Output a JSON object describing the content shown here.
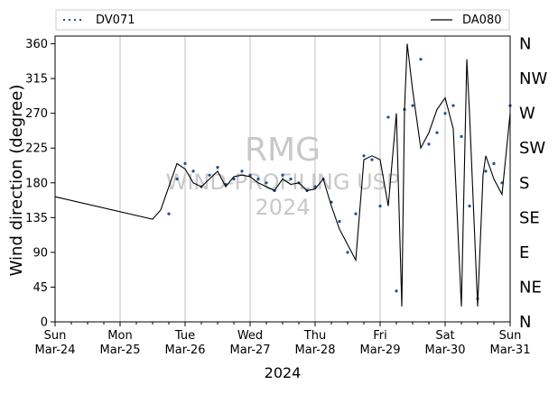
{
  "chart_data": {
    "type": "line",
    "xlabel": "2024",
    "ylabel": "Wind direction (degree)",
    "xlim": [
      "2024-03-24T00:00",
      "2024-03-31T00:00"
    ],
    "ylim": [
      0,
      370
    ],
    "yticks": [
      0,
      45,
      90,
      135,
      180,
      225,
      270,
      315,
      360
    ],
    "x_ticks": [
      {
        "day": "Sun",
        "date": "Mar-24"
      },
      {
        "day": "Mon",
        "date": "Mar-25"
      },
      {
        "day": "Tue",
        "date": "Mar-26"
      },
      {
        "day": "Wed",
        "date": "Mar-27"
      },
      {
        "day": "Thu",
        "date": "Mar-28"
      },
      {
        "day": "Fri",
        "date": "Mar-29"
      },
      {
        "day": "Sat",
        "date": "Mar-30"
      },
      {
        "day": "Sun",
        "date": "Mar-31"
      }
    ],
    "compass_labels": [
      {
        "label": "N",
        "deg": 0
      },
      {
        "label": "NE",
        "deg": 45
      },
      {
        "label": "E",
        "deg": 90
      },
      {
        "label": "SE",
        "deg": 135
      },
      {
        "label": "S",
        "deg": 180
      },
      {
        "label": "SW",
        "deg": 225
      },
      {
        "label": "W",
        "deg": 270
      },
      {
        "label": "NW",
        "deg": 315
      },
      {
        "label": "N",
        "deg": 360
      }
    ],
    "grid": "vertical at day ticks",
    "legend_placement": "top, above plot",
    "watermark": [
      "RMG",
      "WIND-PROFILING USP",
      "2024"
    ],
    "series": [
      {
        "name": "DV071",
        "style": "dotted markers",
        "color": "#1f4e96",
        "x": [
          "2024-03-25T18:00",
          "2024-03-25T21:00",
          "2024-03-26T00:00",
          "2024-03-26T03:00",
          "2024-03-26T06:00",
          "2024-03-26T09:00",
          "2024-03-26T12:00",
          "2024-03-26T15:00",
          "2024-03-26T18:00",
          "2024-03-26T21:00",
          "2024-03-27T00:00",
          "2024-03-27T03:00",
          "2024-03-27T06:00",
          "2024-03-27T09:00",
          "2024-03-27T12:00",
          "2024-03-27T15:00",
          "2024-03-27T18:00",
          "2024-03-27T21:00",
          "2024-03-28T00:00",
          "2024-03-28T03:00",
          "2024-03-28T06:00",
          "2024-03-28T09:00",
          "2024-03-28T12:00",
          "2024-03-28T15:00",
          "2024-03-28T18:00",
          "2024-03-28T21:00",
          "2024-03-29T00:00",
          "2024-03-29T03:00",
          "2024-03-29T06:00",
          "2024-03-29T09:00",
          "2024-03-29T12:00",
          "2024-03-29T15:00",
          "2024-03-29T18:00",
          "2024-03-29T21:00",
          "2024-03-30T00:00",
          "2024-03-30T03:00",
          "2024-03-30T06:00",
          "2024-03-30T09:00",
          "2024-03-30T12:00",
          "2024-03-30T15:00",
          "2024-03-30T18:00",
          "2024-03-30T21:00",
          "2024-03-31T00:00"
        ],
        "y": [
          140,
          185,
          205,
          195,
          175,
          190,
          200,
          178,
          185,
          195,
          190,
          185,
          180,
          170,
          190,
          185,
          180,
          170,
          175,
          185,
          155,
          130,
          90,
          140,
          215,
          210,
          150,
          265,
          40,
          275,
          280,
          340,
          230,
          245,
          270,
          280,
          240,
          150,
          30,
          195,
          205,
          180,
          280
        ]
      },
      {
        "name": "DA080",
        "style": "solid line",
        "color": "#000000",
        "x": [
          "2024-03-24T00:00",
          "2024-03-25T12:00",
          "2024-03-25T15:00",
          "2024-03-25T18:00",
          "2024-03-25T21:00",
          "2024-03-26T00:00",
          "2024-03-26T03:00",
          "2024-03-26T06:00",
          "2024-03-26T09:00",
          "2024-03-26T12:00",
          "2024-03-26T15:00",
          "2024-03-26T18:00",
          "2024-03-26T21:00",
          "2024-03-27T00:00",
          "2024-03-27T03:00",
          "2024-03-27T06:00",
          "2024-03-27T09:00",
          "2024-03-27T12:00",
          "2024-03-27T15:00",
          "2024-03-27T18:00",
          "2024-03-27T21:00",
          "2024-03-28T00:00",
          "2024-03-28T03:00",
          "2024-03-28T06:00",
          "2024-03-28T09:00",
          "2024-03-28T12:00",
          "2024-03-28T15:00",
          "2024-03-28T18:00",
          "2024-03-28T21:00",
          "2024-03-29T00:00",
          "2024-03-29T03:00",
          "2024-03-29T06:00",
          "2024-03-29T08:00",
          "2024-03-29T09:00",
          "2024-03-29T10:00",
          "2024-03-29T12:00",
          "2024-03-29T15:00",
          "2024-03-29T18:00",
          "2024-03-29T21:00",
          "2024-03-30T00:00",
          "2024-03-30T03:00",
          "2024-03-30T06:00",
          "2024-03-30T08:00",
          "2024-03-30T09:00",
          "2024-03-30T12:00",
          "2024-03-30T14:00",
          "2024-03-30T15:00",
          "2024-03-30T18:00",
          "2024-03-30T21:00",
          "2024-03-31T00:00"
        ],
        "y": [
          162,
          133,
          145,
          175,
          205,
          198,
          180,
          175,
          185,
          195,
          175,
          188,
          190,
          188,
          180,
          175,
          170,
          185,
          178,
          180,
          170,
          172,
          185,
          150,
          120,
          100,
          80,
          210,
          215,
          210,
          150,
          270,
          20,
          275,
          360,
          300,
          225,
          245,
          275,
          290,
          250,
          20,
          340,
          270,
          20,
          190,
          215,
          185,
          165,
          270
        ]
      }
    ]
  }
}
